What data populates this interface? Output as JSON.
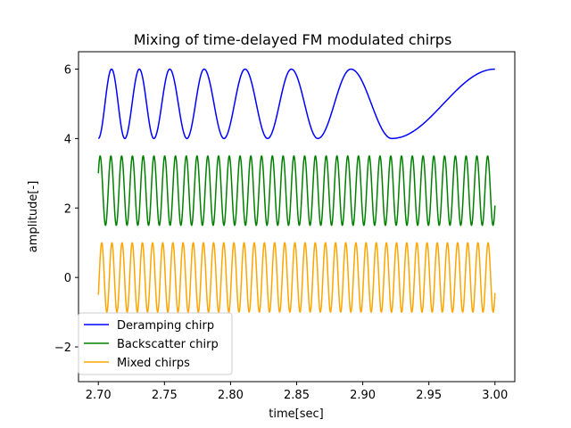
{
  "chart_data": {
    "type": "line",
    "title": "Mixing of time-delayed FM modulated chirps",
    "xlabel": "time[sec]",
    "ylabel": "amplitude[-]",
    "xlim": [
      2.685,
      3.015
    ],
    "ylim": [
      -3.0,
      6.5
    ],
    "xticks": [
      2.7,
      2.75,
      2.8,
      2.85,
      2.9,
      2.95,
      3.0
    ],
    "xtick_labels": [
      "2.70",
      "2.75",
      "2.80",
      "2.85",
      "2.90",
      "2.95",
      "3.00"
    ],
    "yticks": [
      -2,
      0,
      2,
      4,
      6
    ],
    "ytick_labels": [
      "−2",
      "0",
      "2",
      "4",
      "6"
    ],
    "grid": false,
    "legend_position": "lower-left",
    "x_range": [
      2.7,
      3.0
    ],
    "series": [
      {
        "name": "Deramping chirp",
        "color": "#0000ff",
        "description": "Offset +5, amplitude 1; chirp with frequency decreasing over time",
        "offset": 5.0,
        "amplitude": 1.0,
        "peaks_x": [
          2.71,
          2.731,
          2.754,
          2.78,
          2.811,
          2.846,
          2.891,
          3.0
        ],
        "troughs_x": [
          2.7,
          2.72,
          2.742,
          2.767,
          2.795,
          2.828,
          2.866,
          2.922
        ]
      },
      {
        "name": "Backscatter chirp",
        "color": "#008000",
        "description": "Offset +2.5, amplitude 1; nearly constant frequency oscillation (~123 Hz)",
        "offset": 2.5,
        "amplitude": 1.0,
        "frequency_hz": 123.0,
        "start_value": 3.0,
        "end_value": 2.07
      },
      {
        "name": "Mixed chirps",
        "color": "#ffa500",
        "description": "Offset 0, amplitude 1; nearly constant frequency oscillation (~130 Hz)",
        "offset": 0.0,
        "amplitude": 1.0,
        "frequency_hz": 130.0,
        "start_value": -0.5,
        "end_value": -0.45
      }
    ]
  }
}
